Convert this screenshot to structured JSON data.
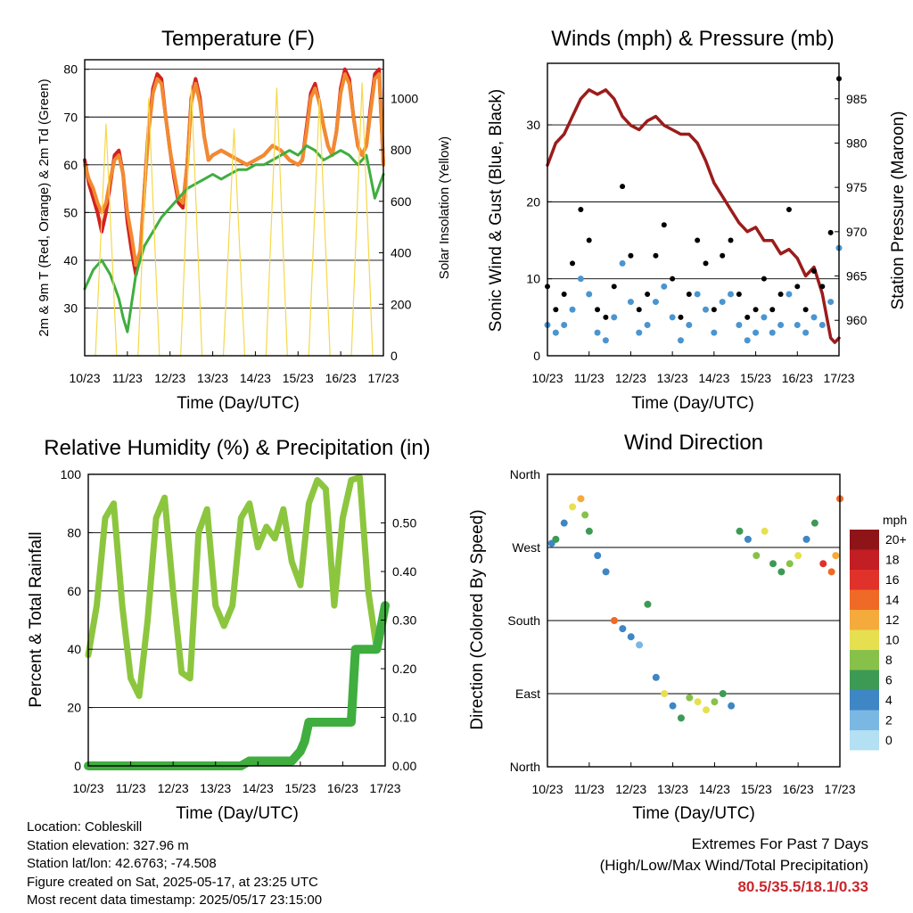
{
  "info": {
    "location": "Location: Cobleskill",
    "elevation": "Station elevation: 327.96 m",
    "latlon": "Station lat/lon: 42.6763; -74.508",
    "created": "Figure created on Sat, 2025-05-17, at 23:25 UTC",
    "recent": "Most recent data timestamp: 2025/05/17 23:15:00"
  },
  "extremes": {
    "title": "Extremes For Past 7 Days",
    "subtitle": "(High/Low/Max Wind/Total Precipitation)",
    "values": "80.5/35.5/18.1/0.33"
  },
  "chart_data": [
    {
      "type": "line",
      "title": "Temperature (F)",
      "xlabel": "Time (Day/UTC)",
      "ylabel": "2m & 9m T (Red, Orange) & 2m Td (Green)",
      "ylabel_right": "Solar Insolation (Yellow)",
      "x_ticks": [
        "10/23",
        "11/23",
        "12/23",
        "13/23",
        "14/23",
        "15/23",
        "16/23",
        "17/23"
      ],
      "ylim": [
        20,
        82
      ],
      "y_ticks": [
        30,
        40,
        50,
        60,
        70,
        80
      ],
      "y2lim": [
        0,
        1150
      ],
      "y2_ticks": [
        0,
        200,
        400,
        600,
        800,
        1000
      ],
      "grid": true,
      "series": [
        {
          "name": "2m T",
          "color": "#d42020",
          "x": [
            0,
            0.1,
            0.2,
            0.3,
            0.4,
            0.5,
            0.6,
            0.7,
            0.8,
            0.9,
            1.0,
            1.1,
            1.2,
            1.3,
            1.4,
            1.5,
            1.6,
            1.7,
            1.8,
            1.9,
            2.0,
            2.1,
            2.2,
            2.3,
            2.4,
            2.5,
            2.6,
            2.7,
            2.8,
            2.9,
            3.0,
            3.2,
            3.4,
            3.6,
            3.8,
            4.0,
            4.2,
            4.4,
            4.6,
            4.8,
            5.0,
            5.1,
            5.2,
            5.3,
            5.4,
            5.5,
            5.6,
            5.7,
            5.8,
            5.9,
            6.0,
            6.1,
            6.2,
            6.3,
            6.4,
            6.5,
            6.6,
            6.7,
            6.8,
            6.9,
            7.0
          ],
          "values": [
            61,
            56,
            53,
            50,
            46,
            50,
            56,
            62,
            63,
            58,
            48,
            42,
            37,
            41,
            55,
            68,
            76,
            79,
            78,
            70,
            63,
            57,
            52,
            51,
            60,
            74,
            78,
            74,
            66,
            61,
            62,
            63,
            62,
            61,
            60,
            61,
            62,
            64,
            63,
            61,
            60,
            61,
            68,
            75,
            77,
            73,
            68,
            64,
            62,
            67,
            76,
            80,
            78,
            70,
            64,
            62,
            64,
            72,
            79,
            80,
            60
          ]
        },
        {
          "name": "9m T",
          "color": "#f28a30",
          "x": [
            0,
            0.1,
            0.2,
            0.3,
            0.4,
            0.5,
            0.6,
            0.7,
            0.8,
            0.9,
            1.0,
            1.1,
            1.2,
            1.3,
            1.4,
            1.5,
            1.6,
            1.7,
            1.8,
            1.9,
            2.0,
            2.1,
            2.2,
            2.3,
            2.4,
            2.5,
            2.6,
            2.7,
            2.8,
            2.9,
            3.0,
            3.2,
            3.4,
            3.6,
            3.8,
            4.0,
            4.2,
            4.4,
            4.6,
            4.8,
            5.0,
            5.1,
            5.2,
            5.3,
            5.4,
            5.5,
            5.6,
            5.7,
            5.8,
            5.9,
            6.0,
            6.1,
            6.2,
            6.3,
            6.4,
            6.5,
            6.6,
            6.7,
            6.8,
            6.9,
            7.0
          ],
          "values": [
            60,
            57,
            55,
            52,
            50,
            52,
            57,
            61,
            62,
            58,
            50,
            45,
            39,
            42,
            55,
            67,
            75,
            78,
            77,
            70,
            63,
            58,
            53,
            52,
            60,
            73,
            77,
            73,
            66,
            61,
            62,
            63,
            62,
            61,
            60,
            61,
            62,
            64,
            63,
            61,
            60,
            61,
            67,
            74,
            76,
            73,
            68,
            64,
            62,
            67,
            75,
            79,
            77,
            70,
            64,
            62,
            64,
            71,
            78,
            79,
            60
          ]
        },
        {
          "name": "2m Td",
          "color": "#3fae3f",
          "x": [
            0,
            0.2,
            0.4,
            0.6,
            0.8,
            0.9,
            1.0,
            1.1,
            1.2,
            1.3,
            1.4,
            1.6,
            1.8,
            2.0,
            2.2,
            2.4,
            2.6,
            2.8,
            3.0,
            3.2,
            3.4,
            3.6,
            3.8,
            4.0,
            4.2,
            4.4,
            4.6,
            4.8,
            5.0,
            5.2,
            5.4,
            5.6,
            5.8,
            6.0,
            6.2,
            6.4,
            6.6,
            6.8,
            7.0
          ],
          "values": [
            34,
            38,
            40,
            37,
            32,
            28,
            25,
            31,
            37,
            40,
            43,
            46,
            49,
            51,
            53,
            55,
            56,
            57,
            58,
            57,
            58,
            59,
            59,
            60,
            60,
            61,
            62,
            63,
            62,
            64,
            63,
            61,
            62,
            63,
            62,
            60,
            62,
            53,
            58
          ]
        },
        {
          "name": "Solar Insolation",
          "color": "#f5d84a",
          "axis": "right",
          "x": [
            0.25,
            0.5,
            0.75,
            1.25,
            1.5,
            1.75,
            2.25,
            2.5,
            2.75,
            3.25,
            3.5,
            3.75,
            4.25,
            4.5,
            4.75,
            5.25,
            5.5,
            5.75,
            6.25,
            6.5,
            6.75
          ],
          "values": [
            0,
            900,
            0,
            0,
            1000,
            0,
            0,
            1050,
            0,
            0,
            880,
            0,
            0,
            1040,
            0,
            0,
            1000,
            0,
            0,
            1060,
            0
          ]
        }
      ]
    },
    {
      "type": "scatter",
      "title": "Winds (mph) & Pressure (mb)",
      "xlabel": "Time (Day/UTC)",
      "ylabel": "Sonic Wind & Gust (Blue, Black)",
      "ylabel_right": "Station Pressure (Maroon)",
      "x_ticks": [
        "10/23",
        "11/23",
        "12/23",
        "13/23",
        "14/23",
        "15/23",
        "16/23",
        "17/23"
      ],
      "ylim": [
        0,
        38
      ],
      "y_ticks": [
        0,
        10,
        20,
        30
      ],
      "y2lim": [
        956,
        989
      ],
      "y2_ticks": [
        960,
        965,
        970,
        975,
        980,
        985
      ],
      "grid": true,
      "series": [
        {
          "name": "Station Pressure",
          "color": "#9b1c1c",
          "axis": "right",
          "x": [
            0,
            0.2,
            0.4,
            0.6,
            0.8,
            1.0,
            1.2,
            1.4,
            1.6,
            1.8,
            2.0,
            2.2,
            2.4,
            2.6,
            2.8,
            3.0,
            3.2,
            3.4,
            3.6,
            3.8,
            4.0,
            4.2,
            4.4,
            4.6,
            4.8,
            5.0,
            5.2,
            5.4,
            5.6,
            5.8,
            6.0,
            6.2,
            6.4,
            6.6,
            6.8,
            6.9,
            7.0
          ],
          "values": [
            977.5,
            980,
            981,
            983,
            985,
            986,
            985.5,
            986,
            985,
            983,
            982,
            981.5,
            982.5,
            983,
            982,
            981.5,
            981,
            981,
            980,
            978,
            975.5,
            974,
            972.5,
            971,
            970,
            970.5,
            969,
            969,
            967.5,
            968,
            967,
            965,
            966,
            963,
            958,
            957.5,
            958
          ]
        },
        {
          "name": "Sonic Wind",
          "color": "#4a95d0",
          "x": [
            0,
            0.2,
            0.4,
            0.6,
            0.8,
            1.0,
            1.2,
            1.4,
            1.6,
            1.8,
            2.0,
            2.2,
            2.4,
            2.6,
            2.8,
            3.0,
            3.2,
            3.4,
            3.6,
            3.8,
            4.0,
            4.2,
            4.4,
            4.6,
            4.8,
            5.0,
            5.2,
            5.4,
            5.6,
            5.8,
            6.0,
            6.2,
            6.4,
            6.6,
            6.8,
            7.0
          ],
          "values": [
            4,
            3,
            4,
            6,
            10,
            8,
            3,
            2,
            5,
            12,
            7,
            3,
            4,
            7,
            9,
            5,
            2,
            4,
            8,
            6,
            3,
            7,
            8,
            4,
            2,
            3,
            5,
            3,
            4,
            8,
            4,
            3,
            5,
            4,
            7,
            14
          ]
        },
        {
          "name": "Gust",
          "color": "#000000",
          "x": [
            0,
            0.2,
            0.4,
            0.6,
            0.8,
            1.0,
            1.2,
            1.4,
            1.6,
            1.8,
            2.0,
            2.2,
            2.4,
            2.6,
            2.8,
            3.0,
            3.2,
            3.4,
            3.6,
            3.8,
            4.0,
            4.2,
            4.4,
            4.6,
            4.8,
            5.0,
            5.2,
            5.4,
            5.6,
            5.8,
            6.0,
            6.2,
            6.4,
            6.6,
            6.8,
            7.0
          ],
          "values": [
            9,
            6,
            8,
            12,
            19,
            15,
            6,
            5,
            9,
            22,
            13,
            6,
            8,
            13,
            17,
            10,
            5,
            8,
            15,
            12,
            6,
            13,
            15,
            8,
            5,
            6,
            10,
            6,
            8,
            19,
            9,
            6,
            11,
            9,
            16,
            36
          ]
        }
      ]
    },
    {
      "type": "line",
      "title": "Relative Humidity (%) & Precipitation (in)",
      "xlabel": "Time (Day/UTC)",
      "ylabel": "Percent & Total Rainfall",
      "x_ticks": [
        "10/23",
        "11/23",
        "12/23",
        "13/23",
        "14/23",
        "15/23",
        "16/23",
        "17/23"
      ],
      "ylim": [
        0,
        100
      ],
      "y_ticks": [
        0,
        20,
        40,
        60,
        80,
        100
      ],
      "y2lim": [
        0,
        0.6
      ],
      "y2_ticks": [
        "0.00",
        "0.10",
        "0.20",
        "0.30",
        "0.40",
        "0.50"
      ],
      "grid": true,
      "series": [
        {
          "name": "Relative Humidity",
          "color": "#8cc63f",
          "x": [
            0,
            0.2,
            0.4,
            0.6,
            0.8,
            1.0,
            1.2,
            1.4,
            1.6,
            1.8,
            2.0,
            2.2,
            2.4,
            2.6,
            2.8,
            3.0,
            3.2,
            3.4,
            3.6,
            3.8,
            4.0,
            4.2,
            4.4,
            4.6,
            4.8,
            5.0,
            5.2,
            5.4,
            5.6,
            5.8,
            6.0,
            6.2,
            6.4,
            6.6,
            6.8,
            7.0
          ],
          "values": [
            38,
            55,
            85,
            90,
            55,
            30,
            24,
            50,
            85,
            92,
            60,
            32,
            30,
            80,
            88,
            55,
            48,
            55,
            85,
            90,
            75,
            82,
            78,
            88,
            70,
            62,
            90,
            98,
            95,
            55,
            85,
            98,
            99,
            60,
            40,
            55
          ]
        },
        {
          "name": "Total Rainfall",
          "color": "#3fae3f",
          "axis": "right",
          "x": [
            0,
            1,
            2,
            3,
            3.6,
            3.8,
            4.0,
            4.6,
            4.8,
            5.0,
            5.1,
            5.2,
            5.4,
            6.0,
            6.2,
            6.3,
            6.4,
            6.8,
            7.0
          ],
          "values": [
            0,
            0,
            0,
            0,
            0,
            0.01,
            0.01,
            0.01,
            0.01,
            0.03,
            0.05,
            0.09,
            0.09,
            0.09,
            0.09,
            0.24,
            0.24,
            0.24,
            0.33
          ]
        }
      ]
    },
    {
      "type": "scatter",
      "title": "Wind Direction",
      "xlabel": "Time (Day/UTC)",
      "ylabel": "Direction (Colored By Speed)",
      "x_ticks": [
        "10/23",
        "11/23",
        "12/23",
        "13/23",
        "14/23",
        "15/23",
        "16/23",
        "17/23"
      ],
      "y_ticks": [
        "North",
        "East",
        "South",
        "West",
        "North"
      ],
      "ylim": [
        0,
        360
      ],
      "grid": true,
      "legend": {
        "title": "mph",
        "labels": [
          "0",
          "2",
          "4",
          "6",
          "8",
          "10",
          "12",
          "14",
          "16",
          "18",
          "20+"
        ],
        "colors": [
          "#b3e0f2",
          "#7ab8e3",
          "#3f86c4",
          "#3d9a55",
          "#88c14a",
          "#e6e050",
          "#f5aa3c",
          "#ef6a26",
          "#e0322a",
          "#c21e24",
          "#8e1418"
        ],
        "placement": "right"
      },
      "x": [
        0.1,
        0.2,
        0.4,
        0.6,
        0.8,
        0.9,
        1.0,
        1.2,
        1.4,
        1.6,
        1.8,
        2.0,
        2.2,
        2.4,
        2.6,
        2.8,
        3.0,
        3.2,
        3.4,
        3.6,
        3.8,
        4.0,
        4.2,
        4.4,
        4.6,
        4.8,
        5.0,
        5.2,
        5.4,
        5.6,
        5.8,
        6.0,
        6.2,
        6.4,
        6.6,
        6.8,
        6.9,
        7.0
      ],
      "direction": [
        275,
        280,
        300,
        320,
        330,
        310,
        290,
        260,
        240,
        180,
        170,
        160,
        150,
        200,
        110,
        90,
        75,
        60,
        85,
        80,
        70,
        80,
        90,
        75,
        290,
        280,
        260,
        290,
        250,
        240,
        250,
        260,
        280,
        300,
        250,
        240,
        260,
        330
      ],
      "speed": [
        4,
        5,
        3,
        9,
        11,
        8,
        6,
        3,
        4,
        13,
        3,
        4,
        2,
        5,
        3,
        9,
        4,
        6,
        8,
        9,
        10,
        7,
        6,
        3,
        5,
        4,
        8,
        9,
        5,
        6,
        8,
        10,
        4,
        6,
        16,
        13,
        11,
        14
      ]
    }
  ]
}
